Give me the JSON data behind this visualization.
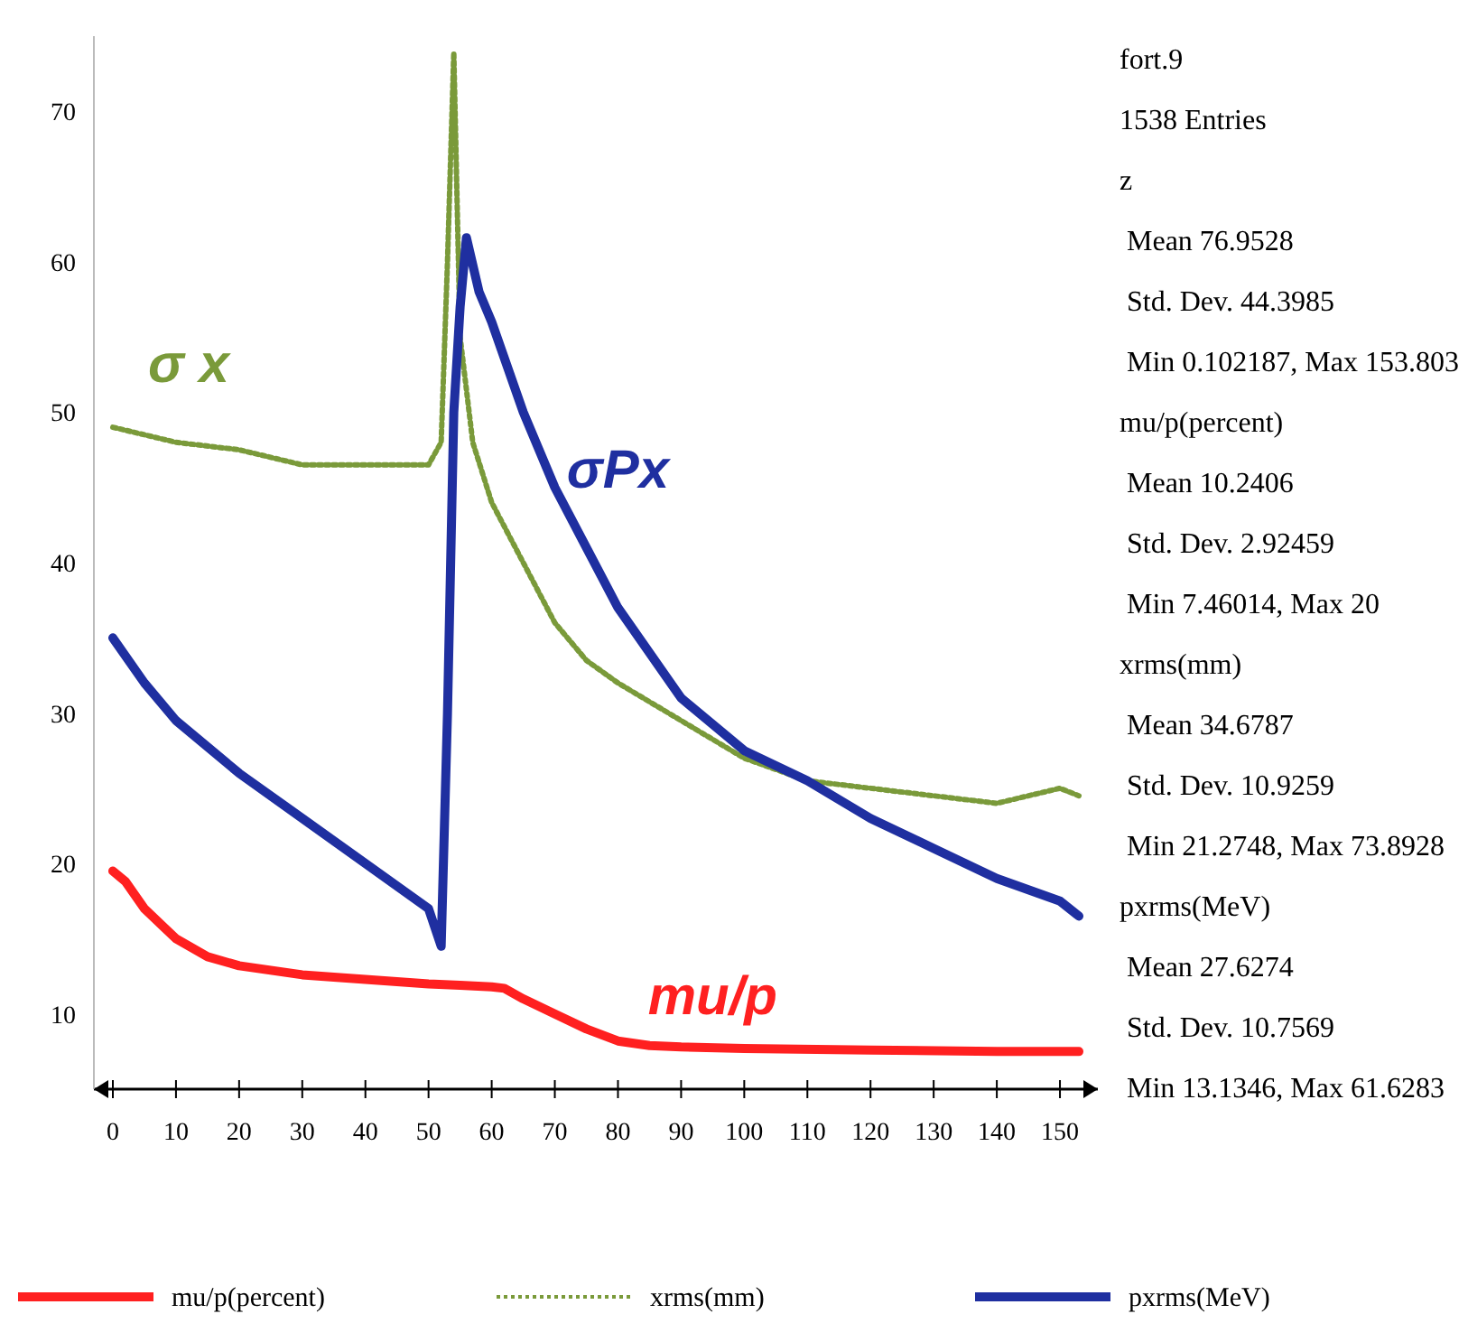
{
  "chart_data": {
    "type": "line",
    "xlim": [
      -3,
      156
    ],
    "ylim": [
      5,
      75
    ],
    "xticks": [
      0,
      10,
      20,
      30,
      40,
      50,
      60,
      70,
      80,
      90,
      100,
      110,
      120,
      130,
      140,
      150
    ],
    "yticks": [
      10,
      20,
      30,
      40,
      50,
      60,
      70
    ],
    "grid": false,
    "legend": "bottom",
    "marker": "none",
    "series": [
      {
        "name": "mu/p(percent)",
        "color": "#ff2020",
        "x": [
          0,
          2,
          5,
          8,
          10,
          15,
          20,
          30,
          40,
          50,
          55,
          60,
          62,
          65,
          70,
          75,
          80,
          85,
          90,
          100,
          120,
          140,
          153
        ],
        "values": [
          19.5,
          18.8,
          17,
          15.8,
          15,
          13.8,
          13.2,
          12.6,
          12.3,
          12,
          11.9,
          11.8,
          11.7,
          11,
          10,
          9,
          8.2,
          7.9,
          7.8,
          7.7,
          7.6,
          7.5,
          7.5
        ]
      },
      {
        "name": "xrms(mm)",
        "color": "#7a9a3a",
        "line_style": "dotted",
        "x": [
          0,
          10,
          20,
          30,
          40,
          50,
          52,
          53,
          54,
          55,
          57,
          60,
          65,
          70,
          75,
          80,
          90,
          100,
          110,
          120,
          130,
          140,
          150,
          153
        ],
        "values": [
          49,
          48,
          47.5,
          46.5,
          46.5,
          46.5,
          48,
          60,
          73.9,
          55,
          48,
          44,
          40,
          36,
          33.5,
          32,
          29.5,
          27,
          25.5,
          25,
          24.5,
          24,
          25,
          24.5
        ]
      },
      {
        "name": "pxrms(MeV)",
        "color": "#1f2fa0",
        "x": [
          0,
          5,
          10,
          20,
          30,
          40,
          50,
          52,
          53,
          54,
          55,
          56,
          58,
          60,
          65,
          70,
          75,
          80,
          90,
          100,
          110,
          120,
          130,
          140,
          150,
          153
        ],
        "values": [
          35,
          32,
          29.5,
          26,
          23,
          20,
          17,
          14.5,
          30,
          50,
          57,
          61.6,
          58,
          56,
          50,
          45,
          41,
          37,
          31,
          27.5,
          25.5,
          23,
          21,
          19,
          17.5,
          16.5
        ]
      }
    ],
    "annotations": [
      "σ x",
      "σPx",
      "mu/p",
      "fort.9",
      "1538 Entries",
      "z",
      " Mean 76.9528",
      " Std. Dev. 44.3985",
      " Min 0.102187, Max 153.803",
      "mu/p(percent)",
      " Mean 10.2406",
      " Std. Dev. 2.92459",
      " Min 7.46014, Max 20",
      "xrms(mm)",
      " Mean 34.6787",
      " Std. Dev. 10.9259",
      " Min 21.2748, Max 73.8928",
      "pxrms(MeV)",
      " Mean 27.6274",
      " Std. Dev. 10.7569",
      " Min 13.1346, Max 61.6283"
    ]
  }
}
